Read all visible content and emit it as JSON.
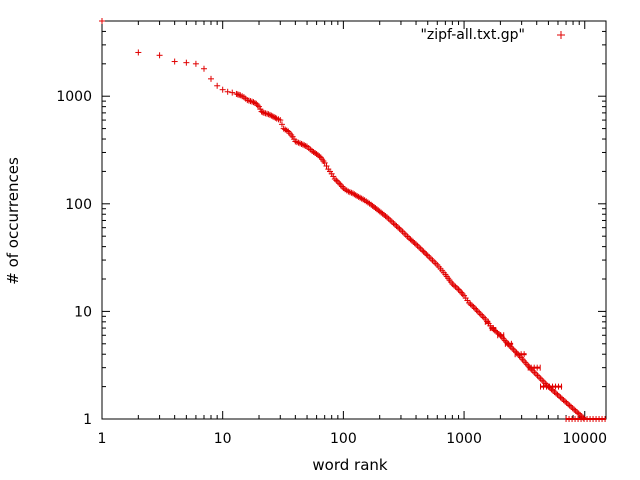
{
  "chart_data": {
    "type": "scatter",
    "xlabel": "word rank",
    "ylabel": "# of occurrences",
    "x_scale": "log",
    "y_scale": "log",
    "xlim": [
      1,
      15000
    ],
    "ylim": [
      1,
      5000
    ],
    "x_ticks": [
      {
        "value": 1,
        "label": "1"
      },
      {
        "value": 10,
        "label": "10"
      },
      {
        "value": 100,
        "label": "100"
      },
      {
        "value": 1000,
        "label": "1000"
      },
      {
        "value": 10000,
        "label": "10000"
      }
    ],
    "y_ticks": [
      {
        "value": 1,
        "label": "1"
      },
      {
        "value": 10,
        "label": "10"
      },
      {
        "value": 100,
        "label": "100"
      },
      {
        "value": 1000,
        "label": "1000"
      }
    ],
    "grid": false,
    "legend_position": "top-right",
    "marker": "+",
    "series": [
      {
        "name": "\"zipf-all.txt.gp\"",
        "color": "#e00000",
        "points": [
          [
            1,
            5000
          ],
          [
            2,
            2550
          ],
          [
            3,
            2400
          ],
          [
            4,
            2100
          ],
          [
            5,
            2050
          ],
          [
            6,
            2000
          ],
          [
            7,
            1800
          ],
          [
            8,
            1450
          ],
          [
            9,
            1250
          ],
          [
            10,
            1150
          ],
          [
            11,
            1100
          ],
          [
            12,
            1080
          ],
          [
            13,
            1050
          ],
          [
            14,
            1020
          ],
          [
            15,
            980
          ],
          [
            16,
            920
          ],
          [
            17,
            900
          ],
          [
            18,
            880
          ],
          [
            19,
            850
          ],
          [
            20,
            800
          ],
          [
            21,
            720
          ],
          [
            22,
            700
          ],
          [
            24,
            680
          ],
          [
            26,
            650
          ],
          [
            28,
            620
          ],
          [
            30,
            600
          ],
          [
            32,
            500
          ],
          [
            35,
            470
          ],
          [
            38,
            420
          ],
          [
            40,
            380
          ],
          [
            45,
            360
          ],
          [
            50,
            340
          ],
          [
            55,
            310
          ],
          [
            60,
            290
          ],
          [
            65,
            270
          ],
          [
            70,
            240
          ],
          [
            75,
            210
          ],
          [
            80,
            190
          ],
          [
            85,
            170
          ],
          [
            90,
            160
          ],
          [
            95,
            150
          ],
          [
            100,
            140
          ],
          [
            110,
            130
          ],
          [
            120,
            125
          ],
          [
            130,
            118
          ],
          [
            150,
            108
          ],
          [
            170,
            98
          ],
          [
            200,
            85
          ],
          [
            230,
            75
          ],
          [
            260,
            66
          ],
          [
            300,
            57
          ],
          [
            350,
            48
          ],
          [
            400,
            42
          ],
          [
            450,
            37
          ],
          [
            500,
            33
          ],
          [
            600,
            27
          ],
          [
            700,
            22
          ],
          [
            800,
            18
          ],
          [
            900,
            16
          ],
          [
            1000,
            14
          ],
          [
            1100,
            12
          ],
          [
            1200,
            11
          ],
          [
            1300,
            10
          ],
          [
            1500,
            8.5
          ],
          [
            1700,
            7
          ],
          [
            2000,
            6
          ],
          [
            2300,
            5
          ],
          [
            2800,
            4
          ],
          [
            3500,
            3
          ],
          [
            5000,
            2
          ],
          [
            10000,
            1
          ]
        ],
        "plateaus": [
          {
            "y": 8,
            "x_start": 1500,
            "x_end": 1650
          },
          {
            "y": 7,
            "x_start": 1650,
            "x_end": 1850
          },
          {
            "y": 6,
            "x_start": 1900,
            "x_end": 2150
          },
          {
            "y": 5,
            "x_start": 2200,
            "x_end": 2550
          },
          {
            "y": 4,
            "x_start": 2650,
            "x_end": 3300
          },
          {
            "y": 3,
            "x_start": 3400,
            "x_end": 4300
          },
          {
            "y": 2,
            "x_start": 4300,
            "x_end": 6500
          },
          {
            "y": 1,
            "x_start": 7000,
            "x_end": 15000
          }
        ]
      }
    ]
  }
}
